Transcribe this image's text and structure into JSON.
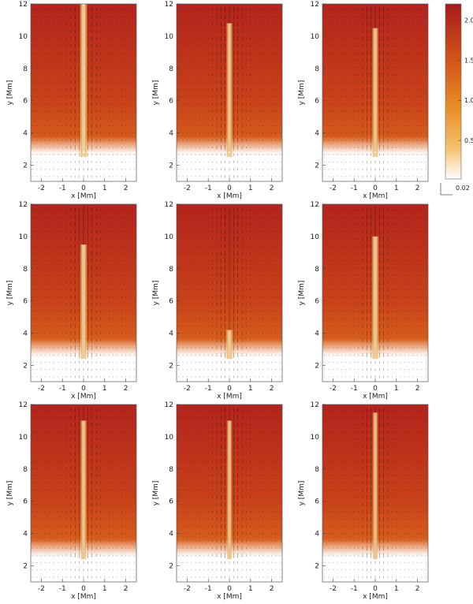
{
  "chart_data": [
    {
      "type": "heatmap",
      "panel": "row1-col1",
      "xlabel": "x [Mm]",
      "ylabel": "y [Mm]",
      "xlim": [
        -2.5,
        2.5
      ],
      "ylim": [
        1,
        12
      ],
      "x_ticks": [
        -2,
        -1,
        0,
        1,
        2
      ],
      "y_ticks": [
        2,
        4,
        6,
        8,
        10,
        12
      ],
      "white_region_top_y": 2.7,
      "jet_halfwidth_mm": 0.18,
      "jet_top_y": 12
    },
    {
      "type": "heatmap",
      "panel": "row1-col2",
      "xlabel": "x [Mm]",
      "ylabel": "y [Mm]",
      "xlim": [
        -2.5,
        2.5
      ],
      "ylim": [
        1,
        12
      ],
      "x_ticks": [
        -2,
        -1,
        0,
        1,
        2
      ],
      "y_ticks": [
        2,
        4,
        6,
        8,
        10,
        12
      ],
      "white_region_top_y": 2.7,
      "jet_halfwidth_mm": 0.14,
      "jet_top_y": 10.8
    },
    {
      "type": "heatmap",
      "panel": "row1-col3",
      "xlabel": "x [Mm]",
      "ylabel": "y [Mm]",
      "xlim": [
        -2.5,
        2.5
      ],
      "ylim": [
        1,
        12
      ],
      "x_ticks": [
        -2,
        -1,
        0,
        1,
        2
      ],
      "y_ticks": [
        2,
        4,
        6,
        8,
        10,
        12
      ],
      "white_region_top_y": 2.7,
      "jet_halfwidth_mm": 0.14,
      "jet_top_y": 10.5
    },
    {
      "type": "heatmap",
      "panel": "row2-col1",
      "xlabel": "x [Mm]",
      "ylabel": "y [Mm]",
      "xlim": [
        -2.5,
        2.5
      ],
      "ylim": [
        1,
        12
      ],
      "x_ticks": [
        -2,
        -1,
        0,
        1,
        2
      ],
      "y_ticks": [
        2,
        4,
        6,
        8,
        10,
        12
      ],
      "white_region_top_y": 2.6,
      "jet_halfwidth_mm": 0.16,
      "jet_top_y": 9.5
    },
    {
      "type": "heatmap",
      "panel": "row2-col2",
      "xlabel": "x [Mm]",
      "ylabel": "y [Mm]",
      "xlim": [
        -2.5,
        2.5
      ],
      "ylim": [
        1,
        12
      ],
      "x_ticks": [
        -2,
        -1,
        0,
        1,
        2
      ],
      "y_ticks": [
        2,
        4,
        6,
        8,
        10,
        12
      ],
      "white_region_top_y": 2.6,
      "jet_halfwidth_mm": 0.16,
      "jet_top_y": 4.2
    },
    {
      "type": "heatmap",
      "panel": "row2-col3",
      "xlabel": "x [Mm]",
      "ylabel": "y [Mm]",
      "xlim": [
        -2.5,
        2.5
      ],
      "ylim": [
        1,
        12
      ],
      "x_ticks": [
        -2,
        -1,
        0,
        1,
        2
      ],
      "y_ticks": [
        2,
        4,
        6,
        8,
        10,
        12
      ],
      "white_region_top_y": 2.6,
      "jet_halfwidth_mm": 0.16,
      "jet_top_y": 10.0
    },
    {
      "type": "heatmap",
      "panel": "row3-col1",
      "xlabel": "x [Mm]",
      "ylabel": "y [Mm]",
      "xlim": [
        -2.5,
        2.5
      ],
      "ylim": [
        1,
        12
      ],
      "x_ticks": [
        -2,
        -1,
        0,
        1,
        2
      ],
      "y_ticks": [
        2,
        4,
        6,
        8,
        10,
        12
      ],
      "white_region_top_y": 2.6,
      "jet_halfwidth_mm": 0.14,
      "jet_top_y": 11.0
    },
    {
      "type": "heatmap",
      "panel": "row3-col2",
      "xlabel": "x [Mm]",
      "ylabel": "y [Mm]",
      "xlim": [
        -2.5,
        2.5
      ],
      "ylim": [
        1,
        12
      ],
      "x_ticks": [
        -2,
        -1,
        0,
        1,
        2
      ],
      "y_ticks": [
        2,
        4,
        6,
        8,
        10,
        12
      ],
      "white_region_top_y": 2.6,
      "jet_halfwidth_mm": 0.12,
      "jet_top_y": 11.0
    },
    {
      "type": "heatmap",
      "panel": "row3-col3",
      "xlabel": "x [Mm]",
      "ylabel": "y [Mm]",
      "xlim": [
        -2.5,
        2.5
      ],
      "ylim": [
        1,
        12
      ],
      "x_ticks": [
        -2,
        -1,
        0,
        1,
        2
      ],
      "y_ticks": [
        2,
        4,
        6,
        8,
        10,
        12
      ],
      "white_region_top_y": 2.6,
      "jet_halfwidth_mm": 0.12,
      "jet_top_y": 11.5
    }
  ],
  "colorbar": {
    "tick_values": [
      0.5,
      1.0,
      1.5,
      2.0
    ],
    "tick_labels": [
      "0.5",
      "1.0",
      "1.5",
      "2.0"
    ],
    "range": [
      0.02,
      2.2
    ],
    "vector_scale_label": "0.02",
    "colors": {
      "low": "#ffffff",
      "mid1": "#f4c06a",
      "mid2": "#e89028",
      "mid3": "#d65a1a",
      "high": "#a81a1a"
    }
  },
  "labels": {
    "xlabel": "x [Mm]",
    "ylabel": "y [Mm]"
  },
  "style_colors": {
    "background_top": "#b3241c",
    "background_bottom": "#e57b1e",
    "jet_core": "#ffffff",
    "jet_edge": "#f2b65a",
    "arrows": "#000000"
  }
}
